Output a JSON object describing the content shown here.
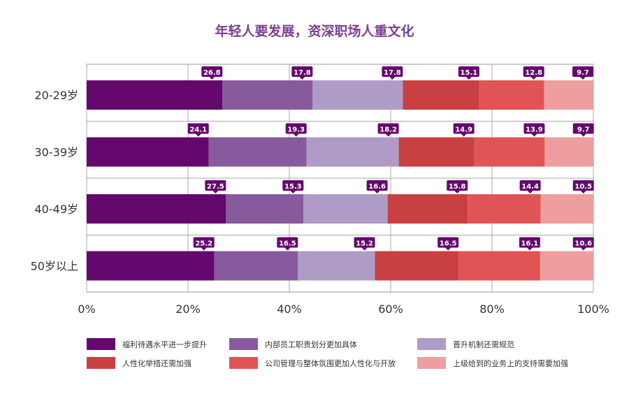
{
  "chart_data": {
    "type": "bar",
    "orientation": "horizontal",
    "stacked": true,
    "title": "年轻人要发展，资深职场人重文化",
    "categories": [
      "20-29岁",
      "30-39岁",
      "40-49岁",
      "50岁以上"
    ],
    "xlim": [
      0,
      100
    ],
    "xticks": [
      "0%",
      "20%",
      "40%",
      "60%",
      "80%",
      "100%"
    ],
    "grid": true,
    "legend_position": "bottom",
    "series": [
      {
        "name": "福利待遇水平进一步提升",
        "color": "#65086e",
        "values": [
          26.8,
          24.1,
          27.5,
          25.2
        ]
      },
      {
        "name": "内部员工职责划分更加具体",
        "color": "#875a9e",
        "values": [
          17.8,
          19.3,
          15.3,
          16.5
        ]
      },
      {
        "name": "晋升机制还需规范",
        "color": "#ae9cc7",
        "values": [
          17.8,
          18.2,
          16.6,
          15.2
        ]
      },
      {
        "name": "人性化举措还需加强",
        "color": "#c84042",
        "values": [
          15.1,
          14.9,
          15.8,
          16.5
        ]
      },
      {
        "name": "公司管理与整体氛围更加人性化与开放",
        "color": "#e15456",
        "values": [
          12.8,
          13.9,
          14.4,
          16.1
        ]
      },
      {
        "name": "上级给到的业务上的支持需要加强",
        "color": "#ee9e9f",
        "values": [
          9.7,
          9.7,
          10.5,
          10.6
        ]
      }
    ],
    "label_color": "#65086e"
  }
}
